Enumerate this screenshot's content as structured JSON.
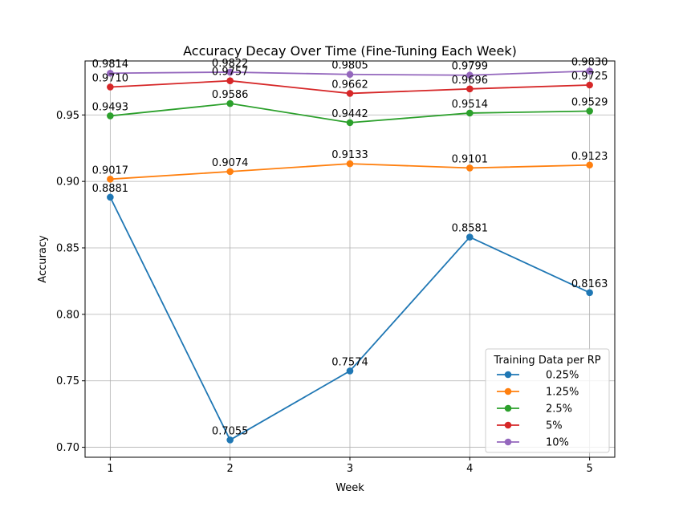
{
  "chart_data": {
    "type": "line",
    "title": "Accuracy Decay Over Time (Fine-Tuning Each Week)",
    "xlabel": "Week",
    "ylabel": "Accuracy",
    "x": [
      1,
      2,
      3,
      4,
      5
    ],
    "xlim": [
      0.79,
      5.21
    ],
    "ylim": [
      0.6925,
      0.9906
    ],
    "xticks": [
      1,
      2,
      3,
      4,
      5
    ],
    "yticks": [
      0.7,
      0.75,
      0.8,
      0.85,
      0.9,
      0.95
    ],
    "ytick_labels": [
      "0.70",
      "0.75",
      "0.80",
      "0.85",
      "0.90",
      "0.95"
    ],
    "grid": true,
    "legend_title": "Training Data per RP",
    "legend_position": "lower-right",
    "series": [
      {
        "name": "0.25%",
        "color": "#1f77b4",
        "values": [
          0.8881,
          0.7055,
          0.7574,
          0.8581,
          0.8163
        ],
        "labels": [
          "0.8881",
          "0.7055",
          "0.7574",
          "0.8581",
          "0.8163"
        ]
      },
      {
        "name": "1.25%",
        "color": "#ff7f0e",
        "values": [
          0.9017,
          0.9074,
          0.9133,
          0.9101,
          0.9123
        ],
        "labels": [
          "0.9017",
          "0.9074",
          "0.9133",
          "0.9101",
          "0.9123"
        ]
      },
      {
        "name": "2.5%",
        "color": "#2ca02c",
        "values": [
          0.9493,
          0.9586,
          0.9442,
          0.9514,
          0.9529
        ],
        "labels": [
          "0.9493",
          "0.9586",
          "0.9442",
          "0.9514",
          "0.9529"
        ]
      },
      {
        "name": "5%",
        "color": "#d62728",
        "values": [
          0.971,
          0.9757,
          0.9662,
          0.9696,
          0.9725
        ],
        "labels": [
          "0.9710",
          "0.9757",
          "0.9662",
          "0.9696",
          "0.9725"
        ]
      },
      {
        "name": "10%",
        "color": "#9467bd",
        "values": [
          0.9814,
          0.9822,
          0.9805,
          0.9799,
          0.983
        ],
        "labels": [
          "0.9814",
          "0.9822",
          "0.9805",
          "0.9799",
          "0.9830"
        ]
      }
    ]
  }
}
